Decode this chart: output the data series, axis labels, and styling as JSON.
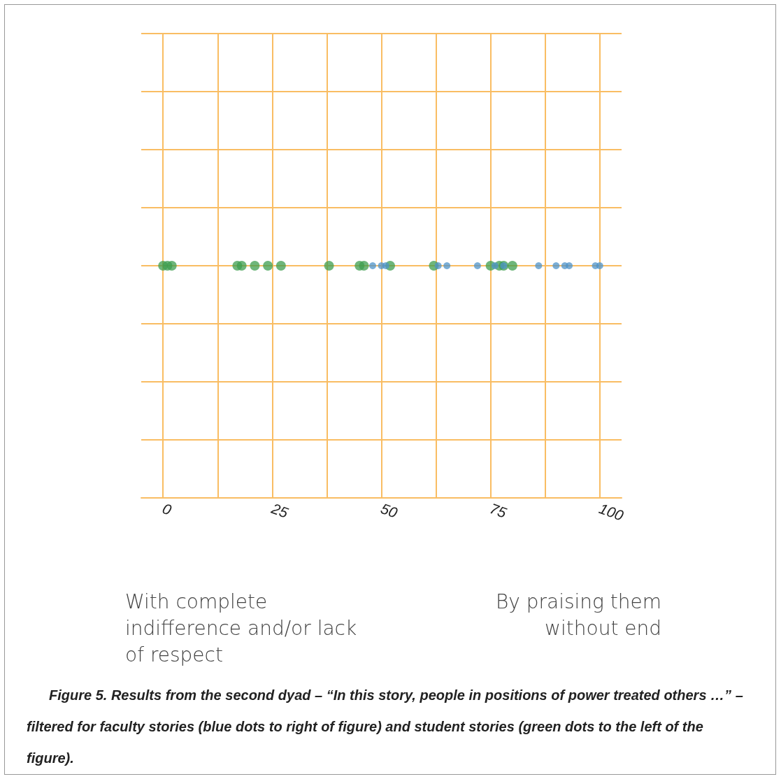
{
  "chart_data": {
    "type": "scatter",
    "orientation": "horizontal",
    "categories": [
      null
    ],
    "xlim": [
      -5,
      105
    ],
    "xticks": [
      0,
      {
        "value": 12.5,
        "label": null
      },
      25,
      {
        "value": 37.5,
        "label": null
      },
      50,
      {
        "value": 62.5,
        "label": null
      },
      75,
      {
        "value": 87.5,
        "label": null
      },
      100
    ],
    "grid": true,
    "marker": "circle",
    "series": [
      {
        "color": "#3d9e4f",
        "x": [
          null,
          null,
          null,
          null,
          null,
          null,
          null,
          null,
          null,
          null,
          null,
          null,
          null,
          null,
          null,
          null,
          null
        ],
        "values": [
          0,
          1,
          2,
          17,
          18,
          21,
          24,
          27,
          38,
          45,
          46,
          52,
          62,
          75,
          77,
          78,
          80
        ]
      },
      {
        "color": "#4d93c9",
        "x": [
          null,
          null,
          null,
          null,
          null,
          null,
          null,
          null,
          null,
          null,
          null,
          null,
          null,
          null
        ],
        "values": [
          48,
          50,
          51,
          63,
          65,
          72,
          76,
          78,
          86,
          90,
          92,
          93,
          99,
          100
        ]
      }
    ],
    "annotations": [
      "With complete indifference and/or lack of respect",
      "By praising them without end",
      "Figure 5. Results from the second dyad – “In this story, people in positions of power treated others …” – filtered for faculty stories (blue dots to right of figure) and student stories (green dots to the left of the figure)."
    ]
  }
}
